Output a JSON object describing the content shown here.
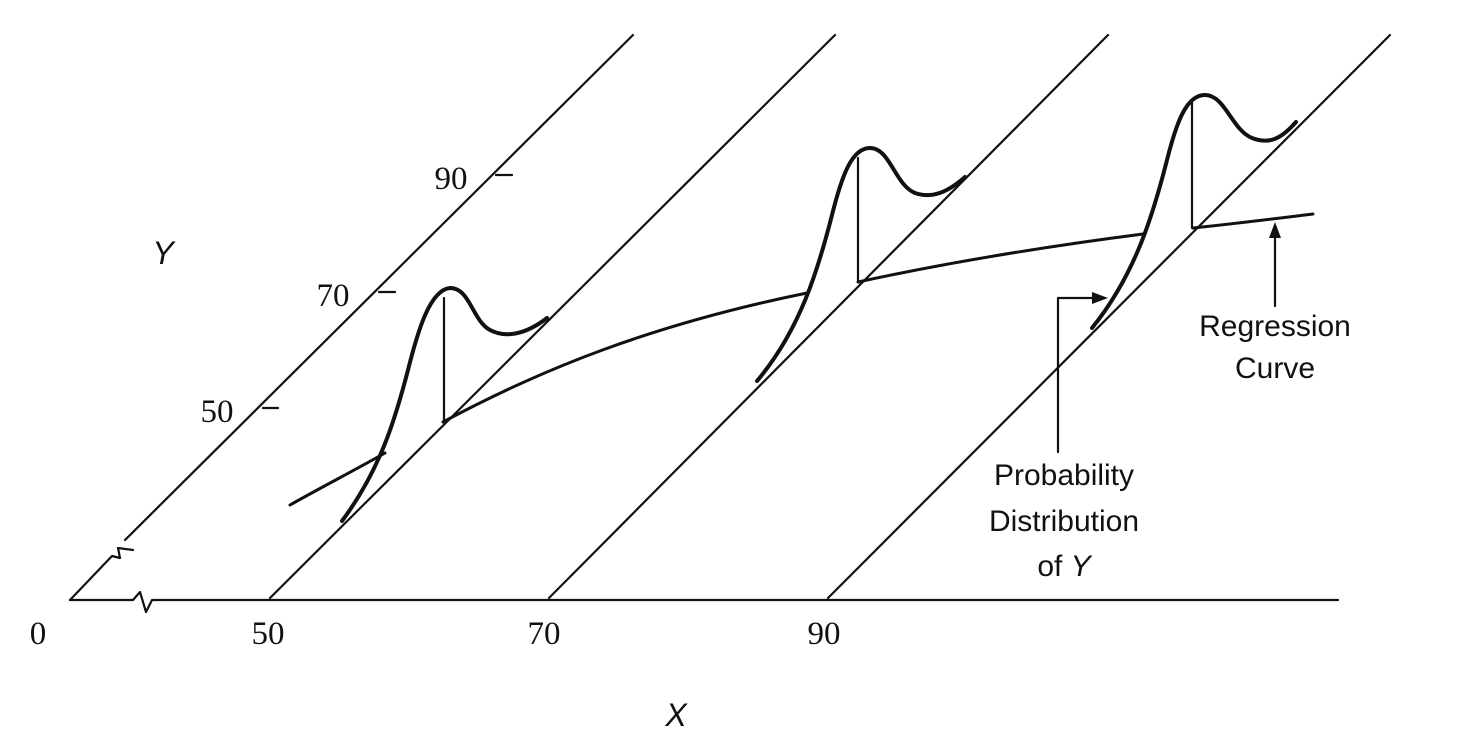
{
  "axes": {
    "origin_label": "0",
    "x_letter": "X",
    "y_letter": "Y",
    "x_ticks": [
      "50",
      "70",
      "90"
    ],
    "y_ticks": [
      "50",
      "70",
      "90"
    ]
  },
  "annotations": {
    "regression": [
      "Regression",
      "Curve"
    ],
    "distribution": {
      "line1": "Probability",
      "line2": "Distribution",
      "line3_prefix": "of ",
      "line3_var": "Y"
    }
  },
  "distributions": [
    "bimodal",
    "bimodal",
    "bimodal"
  ]
}
